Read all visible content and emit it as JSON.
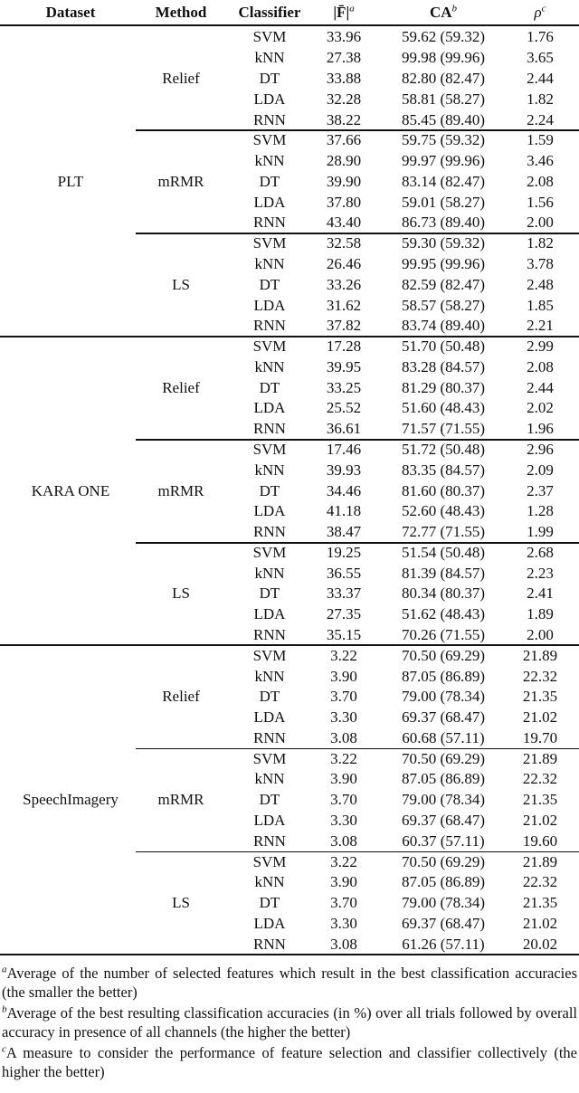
{
  "header": [
    {
      "text": "Dataset"
    },
    {
      "text": "Method"
    },
    {
      "text": "Classifier"
    },
    {
      "text": "|F̄|",
      "sup": "a"
    },
    {
      "text": "CA",
      "sup": "b"
    },
    {
      "text": "ρ",
      "sup": "c"
    }
  ],
  "datasets": [
    {
      "name": "PLT",
      "methods": [
        {
          "name": "Relief",
          "rows": [
            [
              "SVM",
              "33.96",
              "59.62 (59.32)",
              "1.76"
            ],
            [
              "kNN",
              "27.38",
              "99.98 (99.96)",
              "3.65"
            ],
            [
              "DT",
              "33.88",
              "82.80 (82.47)",
              "2.44"
            ],
            [
              "LDA",
              "32.28",
              "58.81 (58.27)",
              "1.82"
            ],
            [
              "RNN",
              "38.22",
              "85.45 (89.40)",
              "2.24"
            ]
          ]
        },
        {
          "name": "mRMR",
          "rows": [
            [
              "SVM",
              "37.66",
              "59.75 (59.32)",
              "1.59"
            ],
            [
              "kNN",
              "28.90",
              "99.97 (99.96)",
              "3.46"
            ],
            [
              "DT",
              "39.90",
              "83.14 (82.47)",
              "2.08"
            ],
            [
              "LDA",
              "37.80",
              "59.01 (58.27)",
              "1.56"
            ],
            [
              "RNN",
              "43.40",
              "86.73 (89.40)",
              "2.00"
            ]
          ]
        },
        {
          "name": "LS",
          "rows": [
            [
              "SVM",
              "32.58",
              "59.30 (59.32)",
              "1.82"
            ],
            [
              "kNN",
              "26.46",
              "99.95 (99.96)",
              "3.78"
            ],
            [
              "DT",
              "33.26",
              "82.59 (82.47)",
              "2.48"
            ],
            [
              "LDA",
              "31.62",
              "58.57 (58.27)",
              "1.85"
            ],
            [
              "RNN",
              "37.82",
              "83.74 (89.40)",
              "2.21"
            ]
          ]
        }
      ]
    },
    {
      "name": "KARA ONE",
      "methods": [
        {
          "name": "Relief",
          "rows": [
            [
              "SVM",
              "17.28",
              "51.70 (50.48)",
              "2.99"
            ],
            [
              "kNN",
              "39.95",
              "83.28 (84.57)",
              "2.08"
            ],
            [
              "DT",
              "33.25",
              "81.29 (80.37)",
              "2.44"
            ],
            [
              "LDA",
              "25.52",
              "51.60 (48.43)",
              "2.02"
            ],
            [
              "RNN",
              "36.61",
              "71.57 (71.55)",
              "1.96"
            ]
          ]
        },
        {
          "name": "mRMR",
          "rows": [
            [
              "SVM",
              "17.46",
              "51.72 (50.48)",
              "2.96"
            ],
            [
              "kNN",
              "39.93",
              "83.35 (84.57)",
              "2.09"
            ],
            [
              "DT",
              "34.46",
              "81.60 (80.37)",
              "2.37"
            ],
            [
              "LDA",
              "41.18",
              "52.60 (48.43)",
              "1.28"
            ],
            [
              "RNN",
              "38.47",
              "72.77 (71.55)",
              "1.99"
            ]
          ]
        },
        {
          "name": "LS",
          "rows": [
            [
              "SVM",
              "19.25",
              "51.54 (50.48)",
              "2.68"
            ],
            [
              "kNN",
              "36.55",
              "81.39 (84.57)",
              "2.23"
            ],
            [
              "DT",
              "33.37",
              "80.34 (80.37)",
              "2.41"
            ],
            [
              "LDA",
              "27.35",
              "51.62 (48.43)",
              "1.89"
            ],
            [
              "RNN",
              "35.15",
              "70.26 (71.55)",
              "2.00"
            ]
          ]
        }
      ]
    },
    {
      "name": "SpeechImagery",
      "methods": [
        {
          "name": "Relief",
          "rows": [
            [
              "SVM",
              "3.22",
              "70.50 (69.29)",
              "21.89"
            ],
            [
              "kNN",
              "3.90",
              "87.05 (86.89)",
              "22.32"
            ],
            [
              "DT",
              "3.70",
              "79.00 (78.34)",
              "21.35"
            ],
            [
              "LDA",
              "3.30",
              "69.37 (68.47)",
              "21.02"
            ],
            [
              "RNN",
              "3.08",
              "60.68 (57.11)",
              "19.70"
            ]
          ]
        },
        {
          "name": "mRMR",
          "rows": [
            [
              "SVM",
              "3.22",
              "70.50 (69.29)",
              "21.89"
            ],
            [
              "kNN",
              "3.90",
              "87.05 (86.89)",
              "22.32"
            ],
            [
              "DT",
              "3.70",
              "79.00 (78.34)",
              "21.35"
            ],
            [
              "LDA",
              "3.30",
              "69.37 (68.47)",
              "21.02"
            ],
            [
              "RNN",
              "3.08",
              "60.37 (57.11)",
              "19.60"
            ]
          ]
        },
        {
          "name": "LS",
          "rows": [
            [
              "SVM",
              "3.22",
              "70.50 (69.29)",
              "21.89"
            ],
            [
              "kNN",
              "3.90",
              "87.05 (86.89)",
              "22.32"
            ],
            [
              "DT",
              "3.70",
              "79.00 (78.34)",
              "21.35"
            ],
            [
              "LDA",
              "3.30",
              "69.37 (68.47)",
              "21.02"
            ],
            [
              "RNN",
              "3.08",
              "61.26 (57.11)",
              "20.02"
            ]
          ]
        }
      ]
    }
  ],
  "footnotes": [
    {
      "mark": "a",
      "text": "Average of the number of selected features which result in the best classification accuracies (the smaller the better)"
    },
    {
      "mark": "b",
      "text": "Average of the best resulting classification accuracies (in %) over all trials followed by overall accuracy in presence of all channels (the higher the better)"
    },
    {
      "mark": "c",
      "text": "A measure to consider the performance of feature selection and classifier collectively (the higher the better)"
    }
  ]
}
